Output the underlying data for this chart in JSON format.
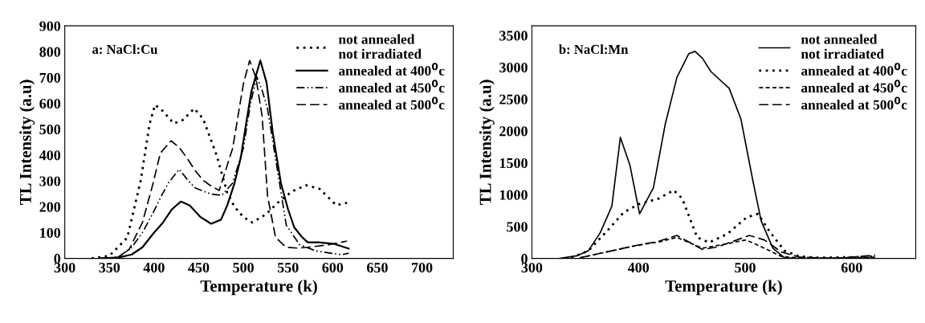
{
  "chart_data": [
    {
      "type": "line",
      "xlabel": "Temperature (k)",
      "ylabel": "TL Intensity (a.u)",
      "annotations": [
        "a: NaCl:Cu"
      ],
      "xlim": [
        300,
        735
      ],
      "xticks": [
        300,
        350,
        400,
        450,
        500,
        550,
        600,
        650,
        700
      ],
      "ylim": [
        0,
        900
      ],
      "yticks": [
        0,
        100,
        200,
        300,
        400,
        500,
        600,
        700,
        800,
        900
      ],
      "grid": false,
      "legend": "top right",
      "marker": "none",
      "series": [
        {
          "name": "not annealed\nnot irradiated",
          "color": "#000000",
          "line_style": "dotted",
          "x": [
            330,
            350,
            370,
            385,
            395,
            401,
            410,
            422,
            432,
            445,
            455,
            470,
            482,
            490,
            500,
            510,
            525,
            540,
            555,
            570,
            585,
            604,
            616
          ],
          "values": [
            0,
            10,
            80,
            300,
            520,
            594,
            570,
            522,
            535,
            580,
            540,
            400,
            254,
            200,
            160,
            139,
            170,
            220,
            260,
            283,
            270,
            206,
            215
          ]
        },
        {
          "name": "annealed at 400$^{0}$c",
          "color": "#000000",
          "line_style": "solid",
          "x": [
            340,
            360,
            375,
            387,
            400,
            410,
            420,
            430,
            440,
            452,
            464,
            475,
            482,
            490,
            497,
            503,
            509,
            519,
            526,
            533,
            542,
            550,
            557,
            565,
            572,
            584,
            601,
            618
          ],
          "values": [
            0,
            3,
            15,
            43,
            100,
            139,
            190,
            220,
            205,
            160,
            134,
            150,
            206,
            290,
            388,
            520,
            647,
            766,
            680,
            484,
            292,
            190,
            120,
            85,
            62,
            62,
            57,
            38
          ]
        },
        {
          "name": "annealed at 450$^{0}$c",
          "color": "#000000",
          "line_style": "dashdot",
          "x": [
            340,
            360,
            375,
            387,
            399,
            408,
            416,
            428,
            438,
            446,
            455,
            464,
            476,
            488,
            500,
            508,
            515,
            521,
            527,
            536,
            548,
            563,
            581,
            610,
            618
          ],
          "values": [
            0,
            5,
            43,
            100,
            177,
            240,
            292,
            345,
            302,
            273,
            260,
            249,
            244,
            292,
            426,
            600,
            704,
            650,
            580,
            388,
            129,
            53,
            29,
            14,
            20
          ]
        },
        {
          "name": "annealed at 500$^{0}$c",
          "color": "#000000",
          "line_style": "longdash",
          "x": [
            340,
            360,
            372,
            387,
            399,
            407,
            419,
            428,
            437,
            446,
            455,
            464,
            473,
            488,
            500,
            507,
            514,
            521,
            527,
            536,
            548,
            560,
            572,
            596,
            616
          ],
          "values": [
            0,
            5,
            34,
            139,
            292,
            407,
            455,
            430,
            388,
            340,
            302,
            280,
            263,
            426,
            675,
            766,
            700,
            551,
            244,
            81,
            43,
            40,
            43,
            53,
            67
          ]
        }
      ]
    },
    {
      "type": "line",
      "xlabel": "Temperature (k)",
      "ylabel": "TL Intensity (a.u)",
      "annotations": [
        "b: NaCl:Mn"
      ],
      "xlim": [
        300,
        660
      ],
      "xticks": [
        300,
        400,
        500,
        600
      ],
      "ylim": [
        0,
        3650
      ],
      "yticks": [
        0,
        500,
        1000,
        1500,
        2000,
        2500,
        3000,
        3500
      ],
      "grid": false,
      "legend": "top right",
      "marker": "none",
      "series": [
        {
          "name": "not annealed\nnot irradiated",
          "color": "#000000",
          "line_style": "solid",
          "x": [
            326,
            342,
            353,
            364,
            375,
            383,
            392,
            401,
            414,
            425,
            436,
            447,
            453,
            460,
            468,
            485,
            496,
            507,
            515,
            526,
            537,
            550,
            620
          ],
          "values": [
            0,
            40,
            120,
            400,
            820,
            1900,
            1460,
            700,
            1110,
            2100,
            2840,
            3210,
            3250,
            3140,
            2930,
            2670,
            2190,
            1240,
            590,
            160,
            10,
            0,
            0
          ]
        },
        {
          "name": "annealed at 400$^{0}$c",
          "color": "#000000",
          "line_style": "dotted",
          "x": [
            337,
            353,
            370,
            386,
            400,
            419,
            433,
            441,
            455,
            466,
            483,
            501,
            512,
            523,
            537,
            551,
            570,
            600,
            622
          ],
          "values": [
            10,
            120,
            420,
            720,
            850,
            940,
            1070,
            940,
            330,
            250,
            380,
            640,
            700,
            420,
            120,
            30,
            10,
            20,
            30
          ]
        },
        {
          "name": "annealed at 450$^{0}$c",
          "color": "#000000",
          "line_style": "dashed",
          "x": [
            345,
            370,
            397,
            420,
            436,
            460,
            480,
            501,
            518,
            534,
            556,
            600,
            622
          ],
          "values": [
            10,
            100,
            200,
            260,
            330,
            160,
            220,
            290,
            160,
            30,
            0,
            10,
            20
          ]
        },
        {
          "name": "annealed at 500$^{0}$c",
          "color": "#000000",
          "line_style": "longdash",
          "x": [
            345,
            375,
            397,
            419,
            436,
            460,
            474,
            504,
            518,
            534,
            551,
            584,
            622
          ],
          "values": [
            10,
            120,
            200,
            270,
            360,
            140,
            180,
            360,
            290,
            100,
            20,
            0,
            50
          ]
        }
      ]
    }
  ]
}
